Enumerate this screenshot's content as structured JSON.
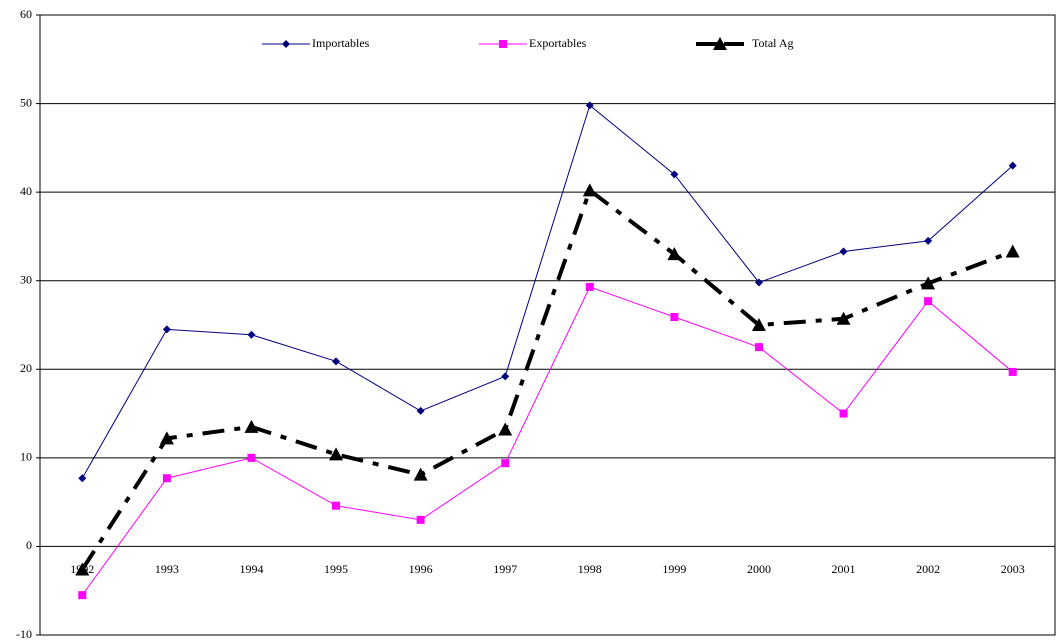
{
  "chart_data": {
    "type": "line",
    "categories": [
      "1992",
      "1993",
      "1994",
      "1995",
      "1996",
      "1997",
      "1998",
      "1999",
      "2000",
      "2001",
      "2002",
      "2003"
    ],
    "series": [
      {
        "name": "Importables",
        "color": "#000080",
        "marker": "diamond",
        "dashed": false,
        "values": [
          7.7,
          24.5,
          23.9,
          20.9,
          15.3,
          19.2,
          49.8,
          42.0,
          29.8,
          33.3,
          34.5,
          43.0
        ]
      },
      {
        "name": "Exportables",
        "color": "#ff00ff",
        "marker": "square",
        "dashed": false,
        "values": [
          -5.5,
          7.7,
          10.0,
          4.6,
          3.0,
          9.4,
          29.3,
          25.9,
          22.5,
          15.0,
          27.7,
          19.7
        ]
      },
      {
        "name": "Total Ag",
        "color": "#000000",
        "marker": "triangle",
        "dashed": true,
        "values": [
          -2.6,
          12.2,
          13.5,
          10.4,
          8.1,
          13.2,
          40.2,
          33.0,
          25.0,
          25.7,
          29.7,
          33.3
        ]
      }
    ],
    "ylim": [
      -10,
      60
    ],
    "yticks": [
      -10,
      0,
      10,
      20,
      30,
      40,
      50,
      60
    ],
    "grid": true,
    "legend": "top"
  }
}
